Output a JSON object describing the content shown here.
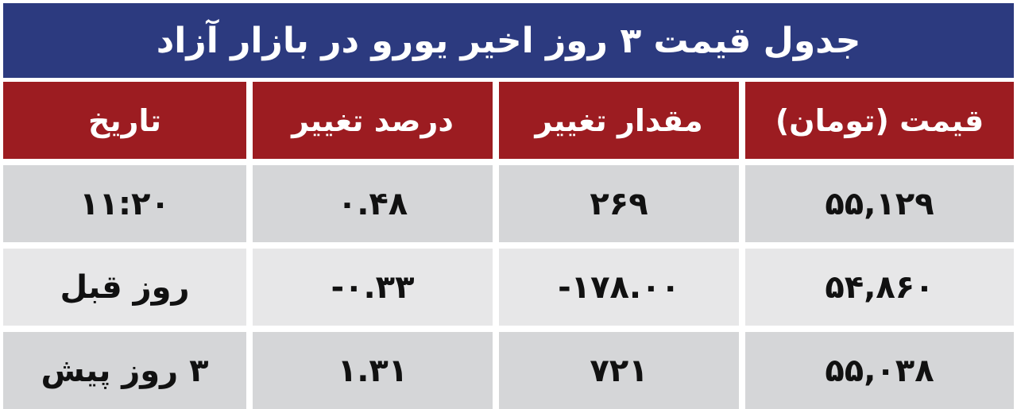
{
  "title": "جدول قیمت ۳ روز اخیر یورو در بازار آزاد",
  "colors": {
    "title_bg": "#2c3a7f",
    "header_bg": "#9c1c21",
    "row_dark": "#d5d6d8",
    "row_light": "#e7e7e8"
  },
  "headers": [
    "تاریخ",
    "درصد تغییر",
    "مقدار تغییر",
    "قیمت (تومان)"
  ],
  "rows": [
    {
      "date": "۱۱:۲۰",
      "percent": "۰.۴۸",
      "change": "۲۶۹",
      "price": "۵۵,۱۲۹"
    },
    {
      "date": "روز قبل",
      "percent": "-۰.۳۳",
      "change": "-۱۷۸.۰۰",
      "price": "۵۴,۸۶۰"
    },
    {
      "date": "۳ روز پیش",
      "percent": "۱.۳۱",
      "change": "۷۲۱",
      "price": "۵۵,۰۳۸"
    }
  ]
}
